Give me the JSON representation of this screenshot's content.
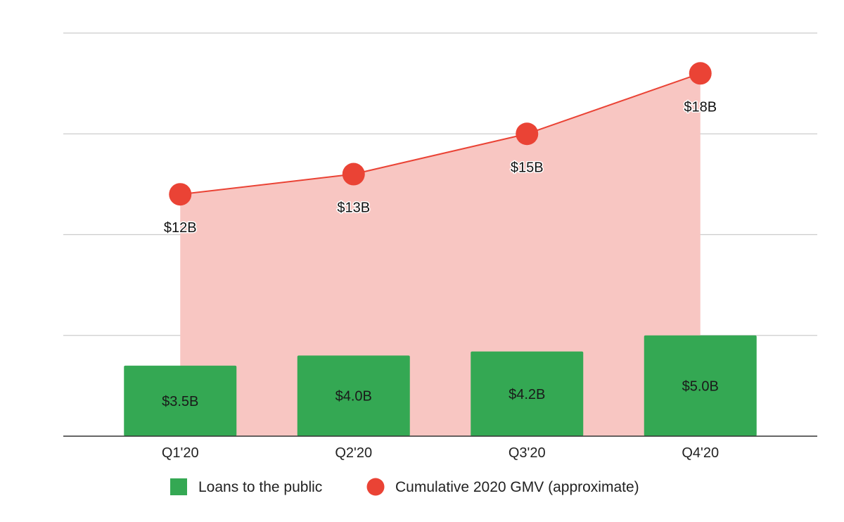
{
  "chart_data": {
    "type": "bar",
    "categories": [
      "Q1'20",
      "Q2'20",
      "Q3'20",
      "Q4'20"
    ],
    "series": [
      {
        "name": "Loans to the public",
        "type": "bar",
        "values": [
          3.5,
          4.0,
          4.2,
          5.0
        ],
        "labels": [
          "$3.5B",
          "$4.0B",
          "$4.2B",
          "$5.0B"
        ],
        "color": "#34a853"
      },
      {
        "name": "Cumulative 2020 GMV (approximate)",
        "type": "line-area",
        "values": [
          12,
          13,
          15,
          18
        ],
        "labels": [
          "$12B",
          "$13B",
          "$15B",
          "$18B"
        ],
        "color": "#ea4335",
        "fill_color": "#f8c6c2"
      }
    ],
    "title": "",
    "xlabel": "",
    "ylabel": "",
    "ylim": [
      0,
      20
    ],
    "grid": true,
    "legend": "bottom"
  }
}
